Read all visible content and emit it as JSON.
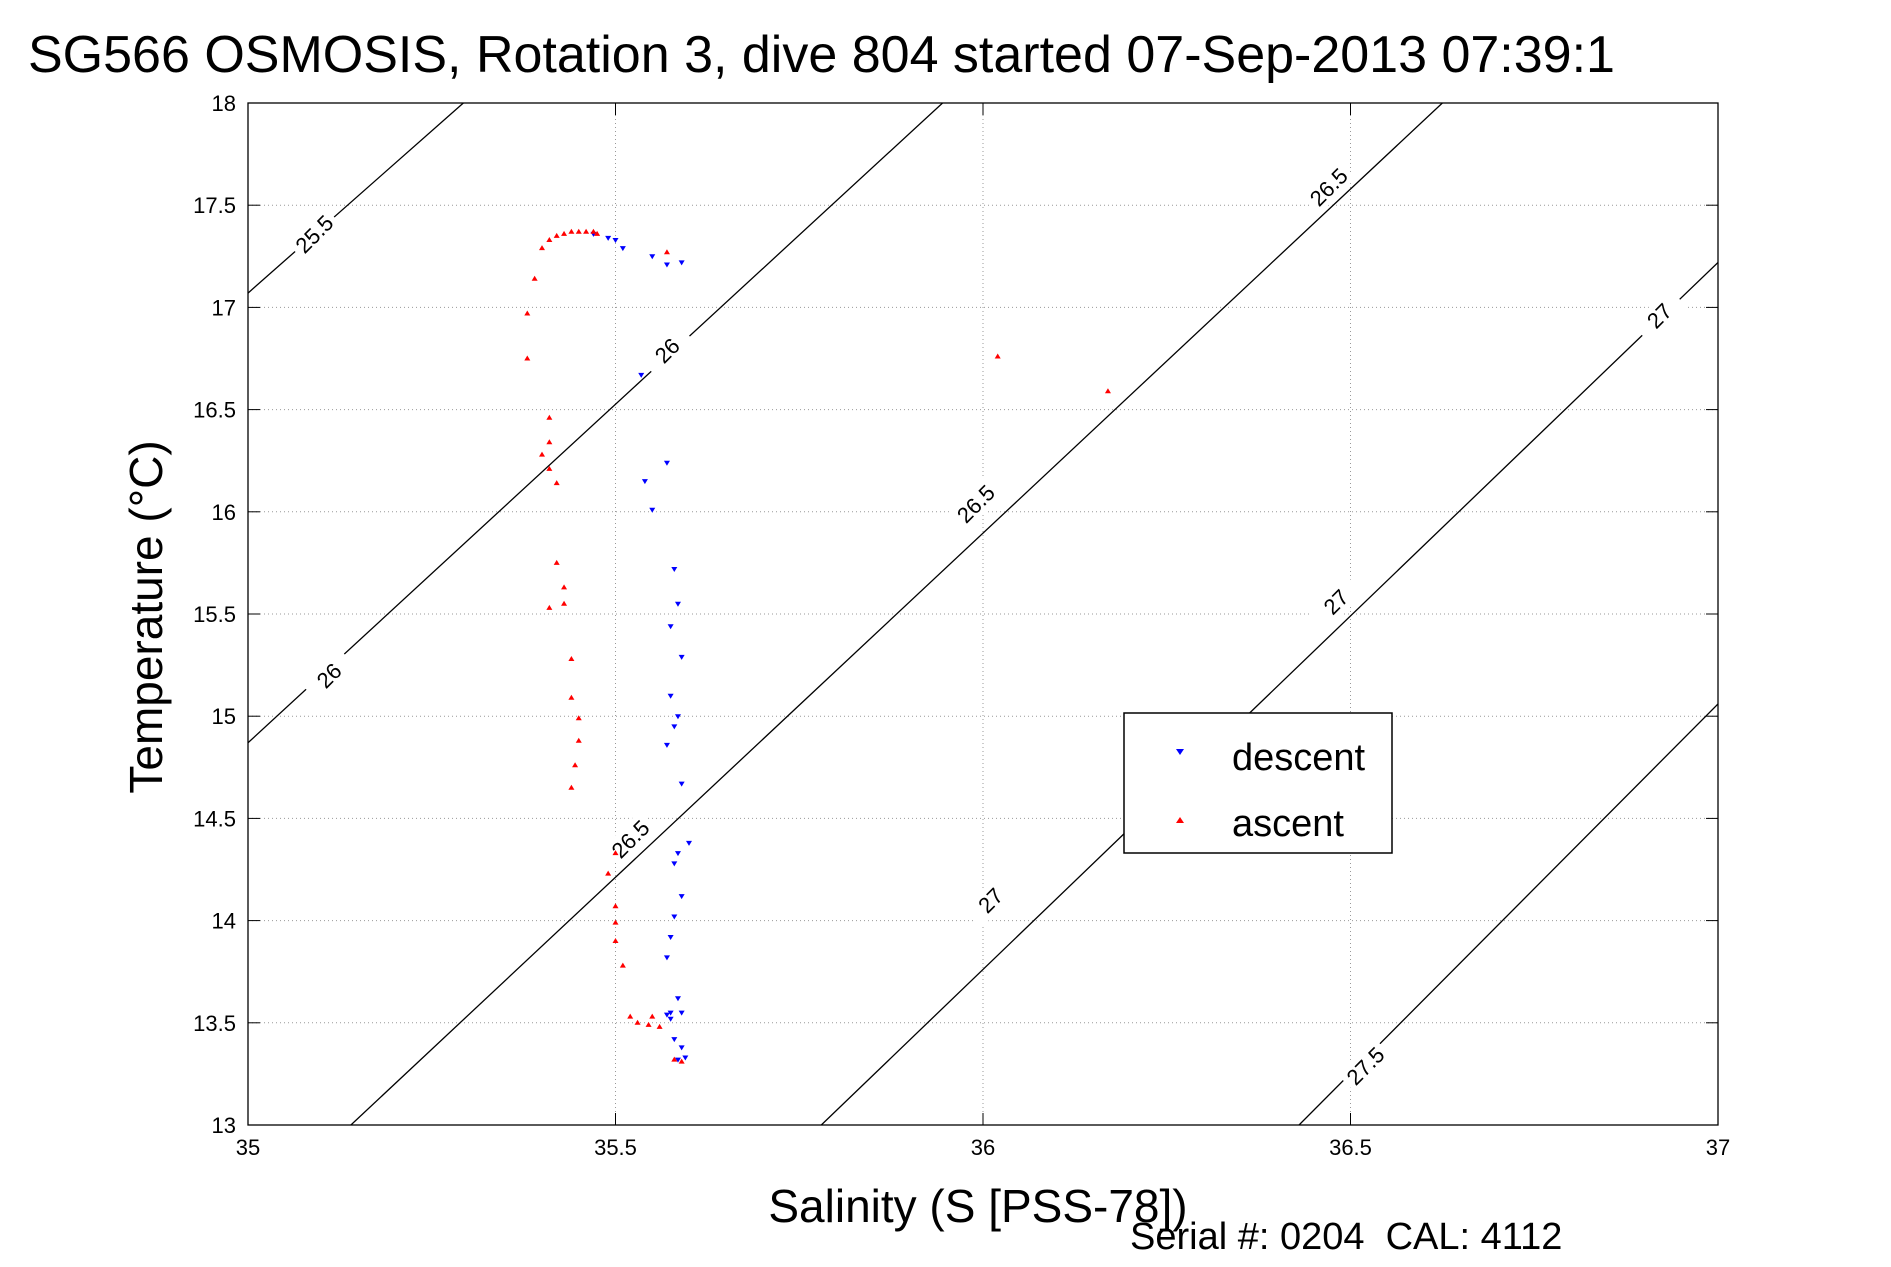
{
  "chart_data": {
    "type": "scatter",
    "title": "SG566 OSMOSIS, Rotation 3, dive 804 started 07-Sep-2013 07:39:1",
    "xlabel": "Salinity (S [PSS-78])",
    "ylabel": "Temperature (°C)",
    "footer": "Serial #: 0204  CAL: 4112",
    "xlim": [
      35,
      37
    ],
    "ylim": [
      13,
      18
    ],
    "xticks": [
      "35",
      "35.5",
      "36",
      "36.5",
      "37"
    ],
    "yticks": [
      "13",
      "13.5",
      "14",
      "14.5",
      "15",
      "15.5",
      "16",
      "16.5",
      "17",
      "17.5",
      "18"
    ],
    "grid": true,
    "legend_position": "right",
    "density_contours": [
      {
        "label": "25.5",
        "x": [
          35.0,
          35.293
        ],
        "y": [
          17.07,
          18.0
        ]
      },
      {
        "label": "26",
        "x": [
          35.0,
          35.945
        ],
        "y": [
          14.87,
          18.0
        ]
      },
      {
        "label": "26.5",
        "x": [
          35.14,
          36.625
        ],
        "y": [
          13.0,
          18.0
        ]
      },
      {
        "label": "27",
        "x": [
          35.78,
          37.0
        ],
        "y": [
          13.0,
          17.22
        ]
      },
      {
        "label": "27.5",
        "x": [
          36.43,
          37.0
        ],
        "y": [
          13.0,
          15.06
        ]
      }
    ],
    "contour_labels": [
      {
        "text": "25.5",
        "x": 35.09,
        "y": 17.36
      },
      {
        "text": "26",
        "x": 35.11,
        "y": 15.2
      },
      {
        "text": "26",
        "x": 35.57,
        "y": 16.79
      },
      {
        "text": "26.5",
        "x": 35.52,
        "y": 14.4
      },
      {
        "text": "26.5",
        "x": 35.99,
        "y": 16.04
      },
      {
        "text": "26.5",
        "x": 36.47,
        "y": 17.59
      },
      {
        "text": "27",
        "x": 36.01,
        "y": 14.1
      },
      {
        "text": "27",
        "x": 36.48,
        "y": 15.56
      },
      {
        "text": "27",
        "x": 36.92,
        "y": 16.96
      },
      {
        "text": "27.5",
        "x": 36.52,
        "y": 13.29
      }
    ],
    "series": [
      {
        "name": "descent",
        "color": "#0000ff",
        "marker": "triangle-down",
        "x": [
          35.47,
          35.49,
          35.5,
          35.51,
          35.55,
          35.57,
          35.59,
          35.535,
          35.57,
          35.54,
          35.55,
          35.58,
          35.585,
          35.575,
          35.59,
          35.575,
          35.585,
          35.58,
          35.57,
          35.59,
          35.6,
          35.585,
          35.58,
          35.59,
          35.58,
          35.575,
          35.57,
          35.585,
          35.575,
          35.59,
          35.57,
          35.575,
          35.58,
          35.59,
          35.595,
          35.585
        ],
        "y": [
          17.36,
          17.34,
          17.33,
          17.29,
          17.25,
          17.21,
          17.22,
          16.67,
          16.24,
          16.15,
          16.01,
          15.72,
          15.55,
          15.44,
          15.29,
          15.1,
          15.0,
          14.95,
          14.86,
          14.67,
          14.38,
          14.33,
          14.28,
          14.12,
          14.02,
          13.92,
          13.82,
          13.62,
          13.55,
          13.55,
          13.54,
          13.52,
          13.42,
          13.38,
          13.33,
          13.32
        ]
      },
      {
        "name": "ascent",
        "color": "#ff0000",
        "marker": "triangle-up",
        "x": [
          35.38,
          35.38,
          35.39,
          35.4,
          35.41,
          35.42,
          35.43,
          35.44,
          35.45,
          35.46,
          35.47,
          35.475,
          35.57,
          36.02,
          36.17,
          35.41,
          35.4,
          35.41,
          35.41,
          35.42,
          35.42,
          35.43,
          35.41,
          35.43,
          35.44,
          35.44,
          35.45,
          35.45,
          35.445,
          35.44,
          35.5,
          35.49,
          35.5,
          35.5,
          35.5,
          35.51,
          35.52,
          35.53,
          35.545,
          35.55,
          35.56,
          35.58,
          35.59
        ],
        "y": [
          16.75,
          16.97,
          17.14,
          17.29,
          17.33,
          17.35,
          17.36,
          17.37,
          17.37,
          17.37,
          17.37,
          17.36,
          17.27,
          16.76,
          16.59,
          16.46,
          16.28,
          16.34,
          16.21,
          16.14,
          15.75,
          15.63,
          15.53,
          15.55,
          15.28,
          15.09,
          14.99,
          14.88,
          14.76,
          14.65,
          14.33,
          14.23,
          14.07,
          13.99,
          13.9,
          13.78,
          13.53,
          13.5,
          13.49,
          13.53,
          13.48,
          13.32,
          13.31
        ]
      }
    ]
  }
}
